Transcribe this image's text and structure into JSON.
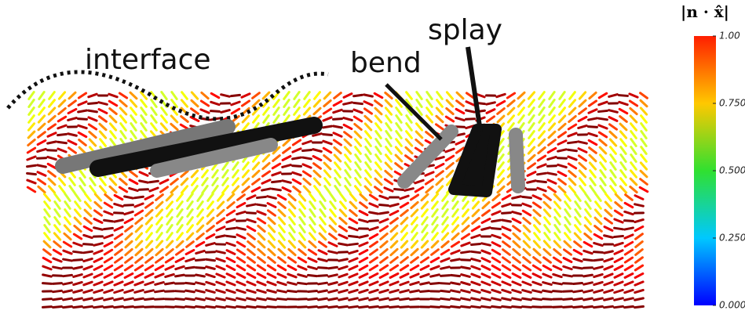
{
  "labels": {
    "interface": "interface",
    "bend": "bend",
    "splay": "splay"
  },
  "colorbar": {
    "title": "|n · x̂|",
    "ticks": [
      {
        "value": 1,
        "label": "1.00"
      },
      {
        "value": 0.75,
        "label": "0.750"
      },
      {
        "value": 0.5,
        "label": "0.500"
      },
      {
        "value": 0.25,
        "label": "0.250"
      },
      {
        "value": 0,
        "label": "0.000"
      }
    ]
  }
}
